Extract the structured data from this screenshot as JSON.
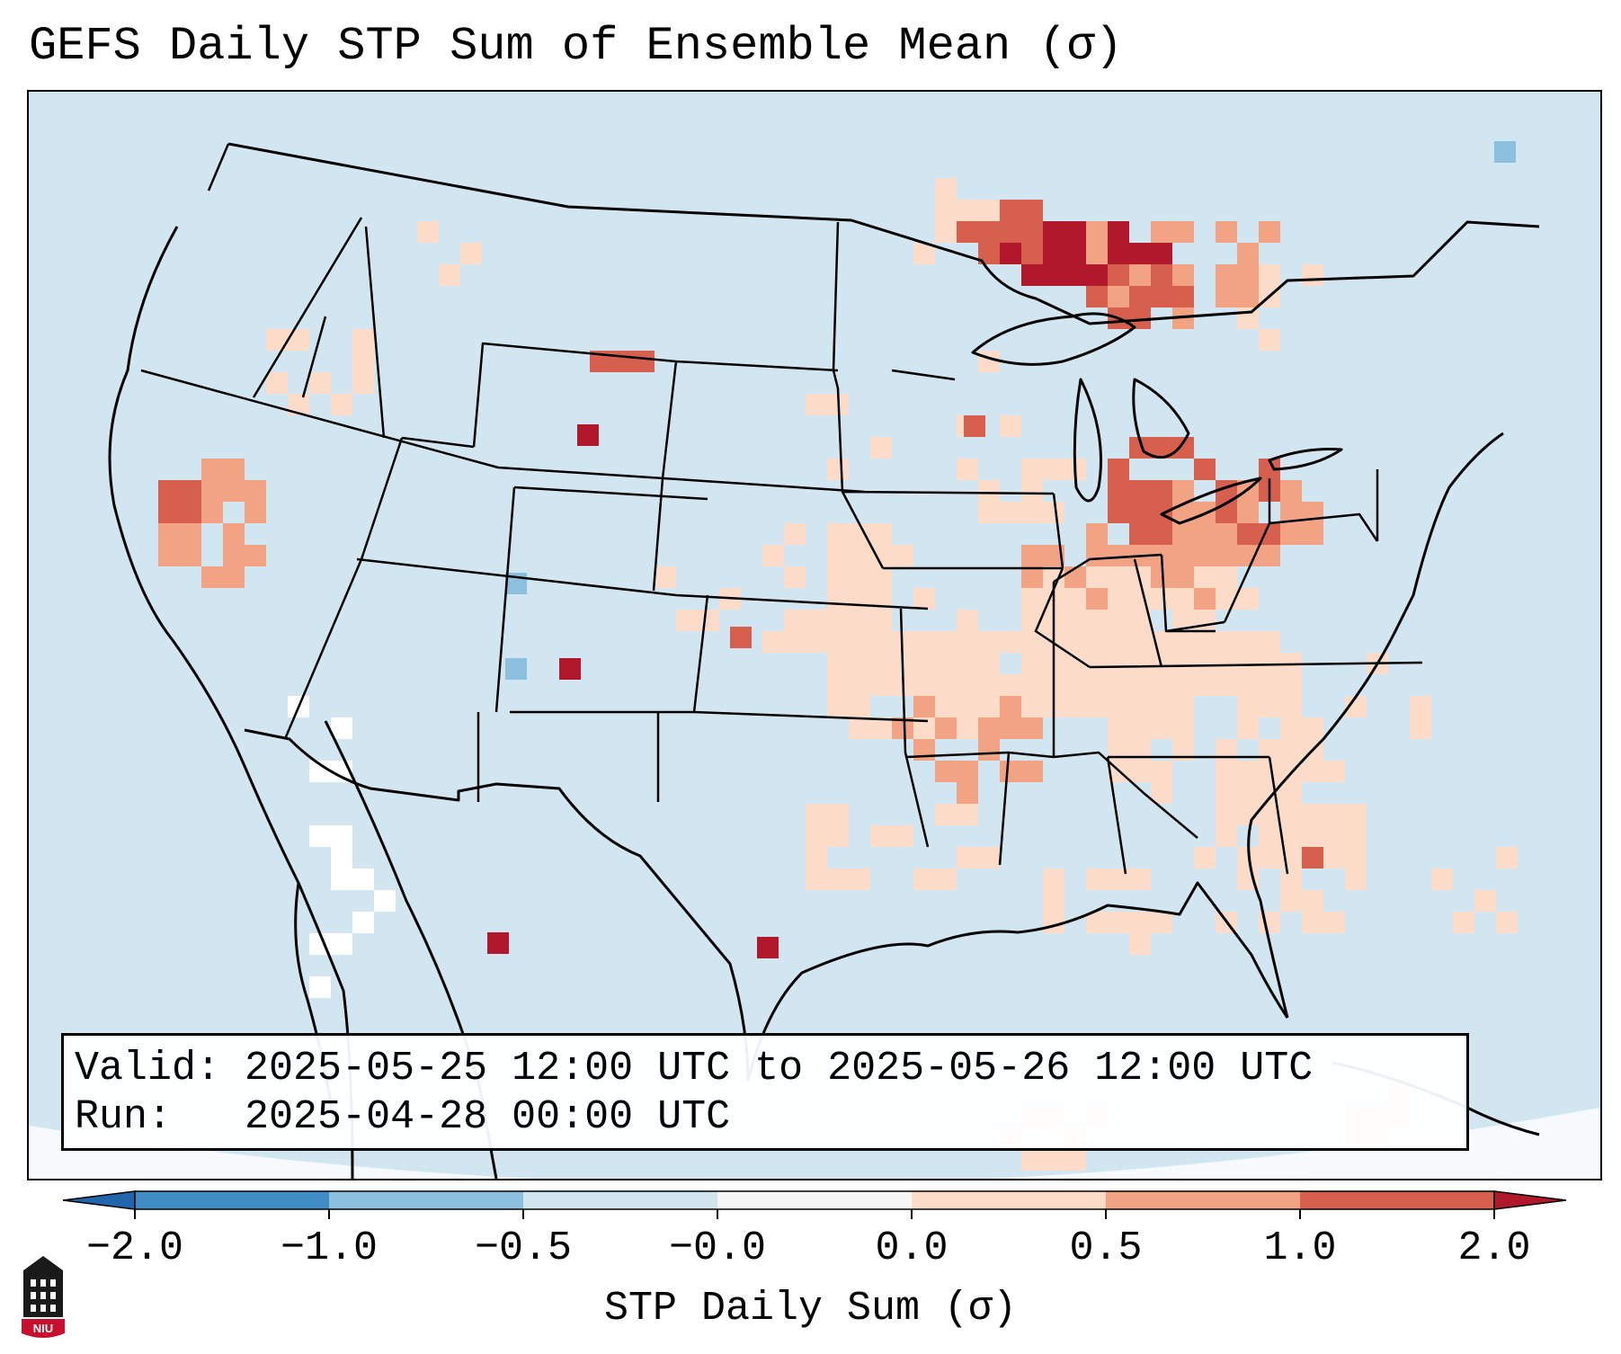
{
  "title": "GEFS Daily STP Sum of Ensemble Mean (σ)",
  "info": {
    "valid_label": "Valid:",
    "valid_value": "2025-05-25 12:00 UTC to 2025-05-26 12:00 UTC",
    "run_label": "Run:",
    "run_value": "2025-04-28 00:00 UTC"
  },
  "colorbar": {
    "label": "STP Daily Sum (σ)",
    "tick_labels": [
      "−2.0",
      "−1.0",
      "−0.5",
      "−0.0",
      "0.0",
      "0.5",
      "1.0",
      "2.0"
    ],
    "bins": [
      {
        "from": "−2.0",
        "to": "−1.0",
        "color": "#3f8dc4"
      },
      {
        "from": "−1.0",
        "to": "−0.5",
        "color": "#8cc0de"
      },
      {
        "from": "−0.5",
        "to": "−0.0",
        "color": "#d2e6f1"
      },
      {
        "from": "−0.0",
        "to": "0.0",
        "color": "#f7f7f7"
      },
      {
        "from": "0.0",
        "to": "0.5",
        "color": "#fcdcc8"
      },
      {
        "from": "0.5",
        "to": "1.0",
        "color": "#f2a384"
      },
      {
        "from": "1.0",
        "to": "2.0",
        "color": "#d6604d"
      }
    ],
    "under_color": "#2166ac",
    "over_color": "#b2182b"
  },
  "map": {
    "background_color": "#d2e6f1",
    "outside_color": "#f7fafc",
    "region": "Contiguous United States with northern Mexico, southern Canada and the Gulf of Mexico"
  },
  "logo": {
    "text": "NIU",
    "icon": "niu-building-icon"
  }
}
